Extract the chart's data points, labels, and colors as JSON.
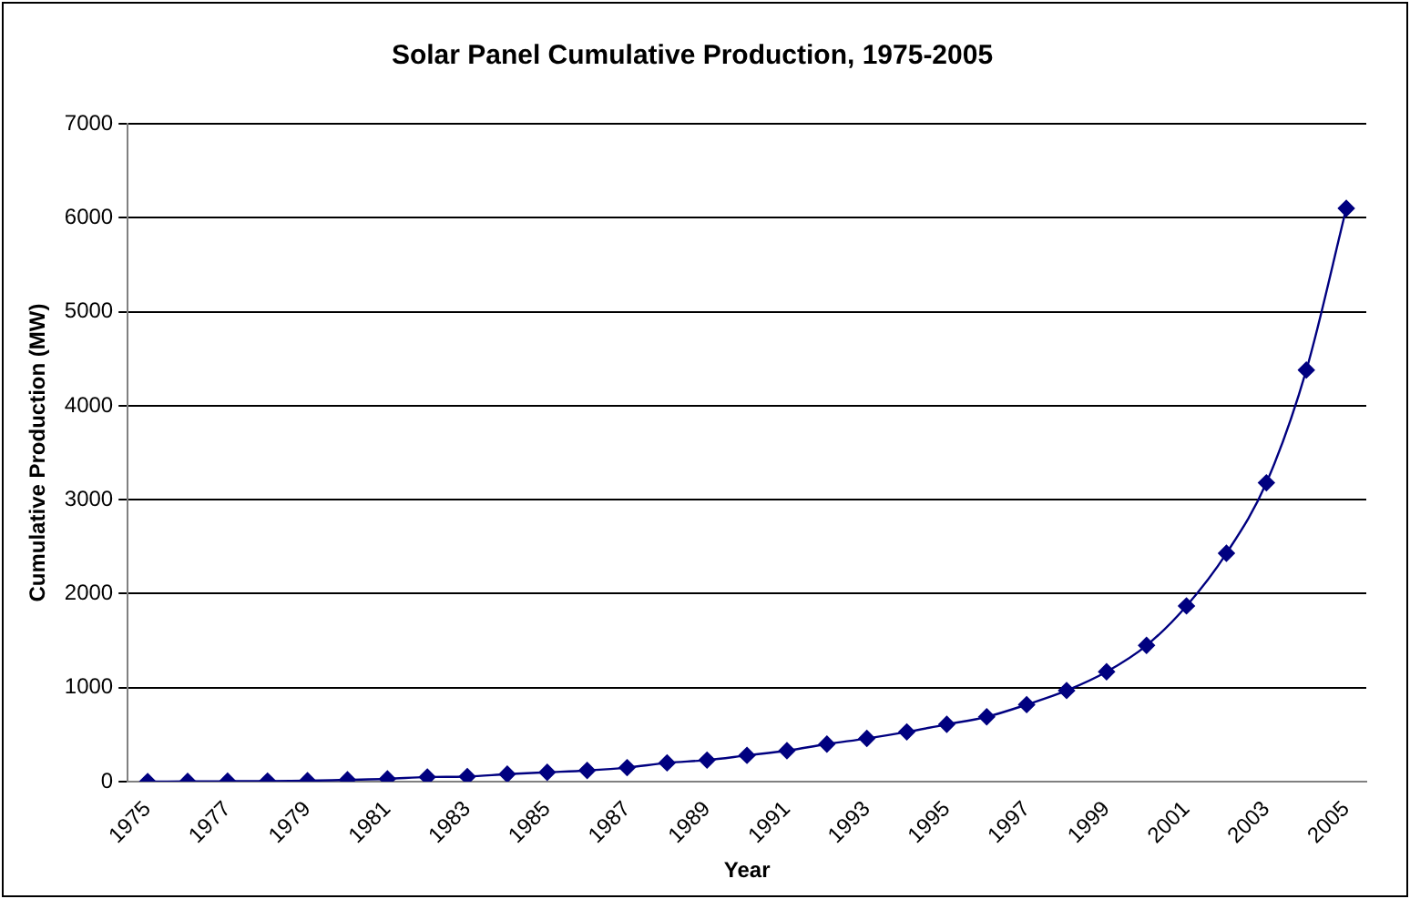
{
  "chart_data": {
    "type": "line",
    "title": "Solar Panel Cumulative Production, 1975-2005",
    "xlabel": "Year",
    "ylabel": "Cumulative Production (MW)",
    "categories": [
      "1975",
      null,
      "1977",
      null,
      "1979",
      null,
      "1981",
      null,
      "1983",
      null,
      "1985",
      null,
      "1987",
      null,
      "1989",
      null,
      "1991",
      null,
      "1993",
      null,
      "1995",
      null,
      "1997",
      null,
      "1999",
      null,
      "2001",
      null,
      "2003",
      null,
      "2005"
    ],
    "series": [
      {
        "color": "#000080",
        "values": [
          2,
          3,
          5,
          7,
          10,
          20,
          30,
          50,
          55,
          80,
          100,
          120,
          150,
          200,
          230,
          280,
          330,
          400,
          460,
          530,
          610,
          690,
          820,
          970,
          1170,
          1450,
          1870,
          2430,
          3180,
          4380,
          6100
        ]
      }
    ],
    "ylim": [
      0,
      7000
    ],
    "yticks": [
      0,
      1000,
      2000,
      3000,
      4000,
      5000,
      6000,
      7000
    ],
    "grid": "y",
    "marker": "diamond",
    "line_style": "solid"
  }
}
